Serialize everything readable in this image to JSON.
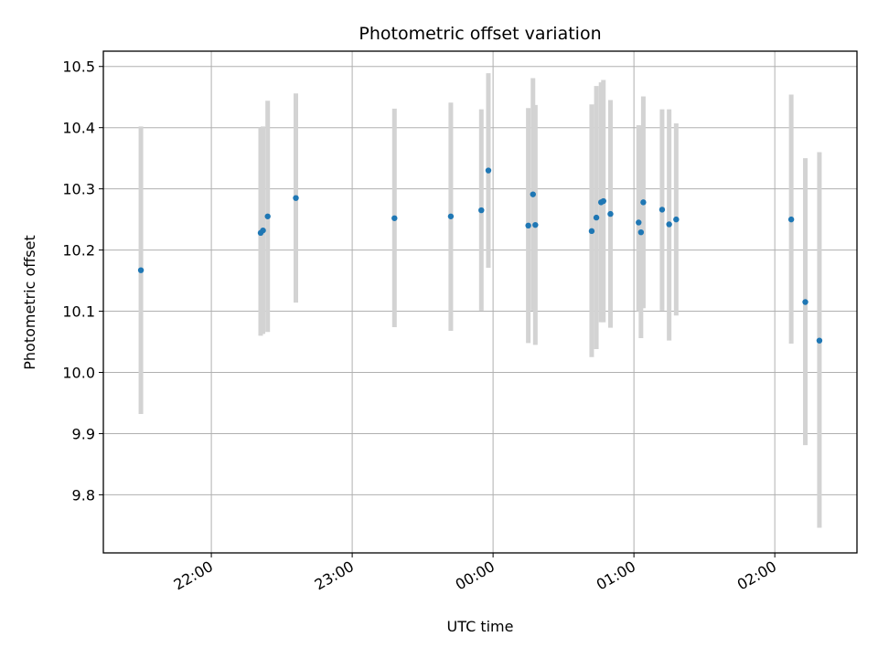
{
  "chart_data": {
    "type": "scatter",
    "title": "Photometric offset variation",
    "xlabel": "UTC time",
    "ylabel": "Photometric offset",
    "x_axis_kind": "time",
    "x_range": [
      "21:14",
      "02:35"
    ],
    "ylim": [
      9.705,
      10.525
    ],
    "x_ticks": [
      "22:00",
      "23:00",
      "00:00",
      "01:00",
      "02:00"
    ],
    "y_ticks": [
      9.8,
      9.9,
      10.0,
      10.1,
      10.2,
      10.3,
      10.4,
      10.5
    ],
    "grid": true,
    "legend": "none",
    "colors": {
      "point": "#1f77b4",
      "errorbar": "#d3d3d3",
      "grid": "#b0b0b0"
    },
    "points": [
      {
        "x": "21:30",
        "y": 10.167,
        "y_low": 9.932,
        "y_high": 10.402
      },
      {
        "x": "22:21",
        "y": 10.228,
        "y_low": 10.06,
        "y_high": 10.4
      },
      {
        "x": "22:22",
        "y": 10.232,
        "y_low": 10.063,
        "y_high": 10.402
      },
      {
        "x": "22:24",
        "y": 10.255,
        "y_low": 10.066,
        "y_high": 10.444
      },
      {
        "x": "22:36",
        "y": 10.285,
        "y_low": 10.114,
        "y_high": 10.456
      },
      {
        "x": "23:18",
        "y": 10.252,
        "y_low": 10.074,
        "y_high": 10.431
      },
      {
        "x": "23:42",
        "y": 10.255,
        "y_low": 10.068,
        "y_high": 10.441
      },
      {
        "x": "23:55",
        "y": 10.265,
        "y_low": 10.101,
        "y_high": 10.43
      },
      {
        "x": "23:58",
        "y": 10.33,
        "y_low": 10.171,
        "y_high": 10.489
      },
      {
        "x": "00:15",
        "y": 10.24,
        "y_low": 10.048,
        "y_high": 10.432
      },
      {
        "x": "00:17",
        "y": 10.291,
        "y_low": 10.101,
        "y_high": 10.481
      },
      {
        "x": "00:18",
        "y": 10.241,
        "y_low": 10.045,
        "y_high": 10.437
      },
      {
        "x": "00:42",
        "y": 10.231,
        "y_low": 10.025,
        "y_high": 10.438
      },
      {
        "x": "00:44",
        "y": 10.253,
        "y_low": 10.038,
        "y_high": 10.468
      },
      {
        "x": "00:46",
        "y": 10.278,
        "y_low": 10.082,
        "y_high": 10.474
      },
      {
        "x": "00:47",
        "y": 10.28,
        "y_low": 10.082,
        "y_high": 10.478
      },
      {
        "x": "00:50",
        "y": 10.259,
        "y_low": 10.073,
        "y_high": 10.445
      },
      {
        "x": "01:02",
        "y": 10.245,
        "y_low": 10.1,
        "y_high": 10.404
      },
      {
        "x": "01:03",
        "y": 10.229,
        "y_low": 10.056,
        "y_high": 10.403
      },
      {
        "x": "01:04",
        "y": 10.278,
        "y_low": 10.105,
        "y_high": 10.451
      },
      {
        "x": "01:12",
        "y": 10.266,
        "y_low": 10.101,
        "y_high": 10.43
      },
      {
        "x": "01:15",
        "y": 10.242,
        "y_low": 10.052,
        "y_high": 10.43
      },
      {
        "x": "01:18",
        "y": 10.25,
        "y_low": 10.093,
        "y_high": 10.407
      },
      {
        "x": "02:07",
        "y": 10.25,
        "y_low": 10.047,
        "y_high": 10.454
      },
      {
        "x": "02:13",
        "y": 10.115,
        "y_low": 9.881,
        "y_high": 10.35
      },
      {
        "x": "02:19",
        "y": 10.052,
        "y_low": 9.746,
        "y_high": 10.36
      }
    ]
  }
}
